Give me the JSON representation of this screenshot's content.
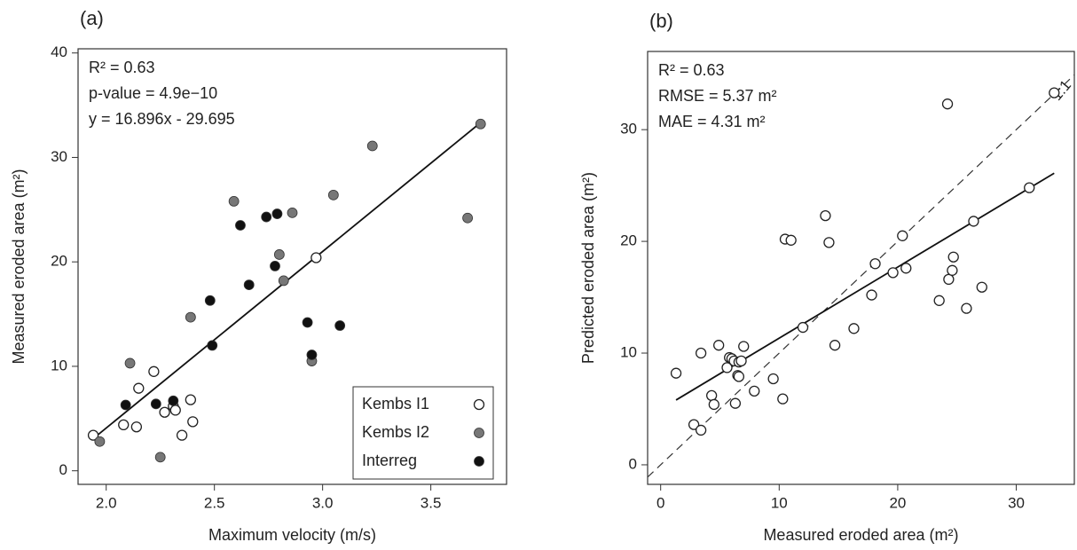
{
  "chart_data": [
    {
      "type": "scatter",
      "panel_label": "(a)",
      "x_label": "Maximum velocity (m/s)",
      "y_label": "Measured eroded area (m²)",
      "annotations": [
        "R² = 0.63",
        "p-value = 4.9e−10",
        "y = 16.896x - 29.695"
      ],
      "xlim": [
        1.87,
        3.85
      ],
      "ylim": [
        -1.3,
        40.4
      ],
      "xticks": [
        {
          "value": 2,
          "label": "2.0"
        },
        {
          "value": 2.5,
          "label": "2.5"
        },
        {
          "value": 3,
          "label": "3.0"
        },
        {
          "value": 3.5,
          "label": "3.5"
        }
      ],
      "yticks": [
        0,
        10,
        20,
        30,
        40
      ],
      "legend": "lower right",
      "series": [
        {
          "name": "Kembs I1",
          "color": "#222222",
          "marker": "open",
          "x": [
            1.94,
            2.08,
            2.14,
            2.15,
            2.22,
            2.27,
            2.31,
            2.32,
            2.35,
            2.39,
            2.4,
            2.97
          ],
          "values": [
            3.4,
            4.4,
            4.2,
            7.9,
            9.5,
            5.6,
            6.2,
            5.8,
            3.4,
            6.8,
            4.7,
            20.4
          ]
        },
        {
          "name": "Kembs I2",
          "color": "#777777",
          "marker": "filled",
          "x": [
            1.97,
            2.11,
            2.25,
            2.39,
            2.59,
            2.8,
            2.82,
            2.86,
            2.95,
            3.05,
            3.23,
            3.67,
            3.73
          ],
          "values": [
            2.8,
            10.3,
            1.3,
            14.7,
            25.8,
            20.7,
            18.2,
            24.7,
            10.5,
            26.4,
            31.1,
            24.2,
            33.2
          ]
        },
        {
          "name": "Interreg",
          "color": "#111111",
          "marker": "filled",
          "x": [
            2.09,
            2.23,
            2.31,
            2.48,
            2.49,
            2.62,
            2.66,
            2.74,
            2.78,
            2.79,
            2.93,
            2.95,
            3.08
          ],
          "values": [
            6.3,
            6.4,
            6.7,
            16.3,
            12.0,
            23.5,
            17.8,
            24.3,
            19.6,
            24.6,
            14.2,
            11.1,
            13.9
          ]
        }
      ],
      "trend": {
        "x": [
          1.94,
          3.73
        ],
        "values": [
          3.08,
          33.33
        ]
      }
    },
    {
      "type": "scatter",
      "panel_label": "(b)",
      "x_label": "Measured eroded area (m²)",
      "y_label": "Predicted eroded area (m²)",
      "annotations": [
        "R² = 0.63",
        "RMSE = 5.37 m²",
        "MAE = 4.31 m²"
      ],
      "xlim": [
        -1.1,
        34.9
      ],
      "ylim": [
        -1.75,
        37
      ],
      "xticks": [
        0,
        10,
        20,
        30
      ],
      "yticks": [
        0,
        10,
        20,
        30
      ],
      "series": [
        {
          "color": "#222222",
          "marker": "open",
          "x": [
            1.3,
            2.8,
            3.4,
            3.4,
            4.3,
            4.5,
            4.9,
            5.6,
            5.8,
            6.0,
            6.2,
            6.3,
            6.5,
            6.6,
            6.6,
            6.8,
            7.0,
            7.9,
            9.5,
            10.3,
            10.5,
            11.0,
            12.0,
            13.9,
            14.2,
            14.7,
            16.3,
            17.8,
            18.1,
            19.6,
            20.4,
            20.7,
            23.5,
            24.2,
            24.3,
            24.6,
            24.7,
            25.8,
            26.4,
            27.1,
            31.1,
            33.2
          ],
          "values": [
            8.2,
            3.6,
            3.1,
            10.0,
            6.2,
            5.4,
            10.7,
            8.7,
            9.6,
            9.5,
            9.3,
            5.5,
            8.0,
            7.9,
            9.2,
            9.3,
            10.6,
            6.6,
            7.7,
            5.9,
            20.2,
            20.1,
            12.3,
            22.3,
            19.9,
            10.7,
            12.2,
            15.2,
            18.0,
            17.2,
            20.5,
            17.6,
            14.7,
            32.3,
            16.6,
            17.4,
            18.6,
            14.0,
            21.8,
            15.9,
            24.8,
            33.3
          ]
        }
      ],
      "trend": {
        "x": [
          1.3,
          33.2
        ],
        "values": [
          5.8,
          26.1
        ]
      },
      "identity_line": {
        "label": "1:1",
        "style": "dashed"
      }
    }
  ]
}
